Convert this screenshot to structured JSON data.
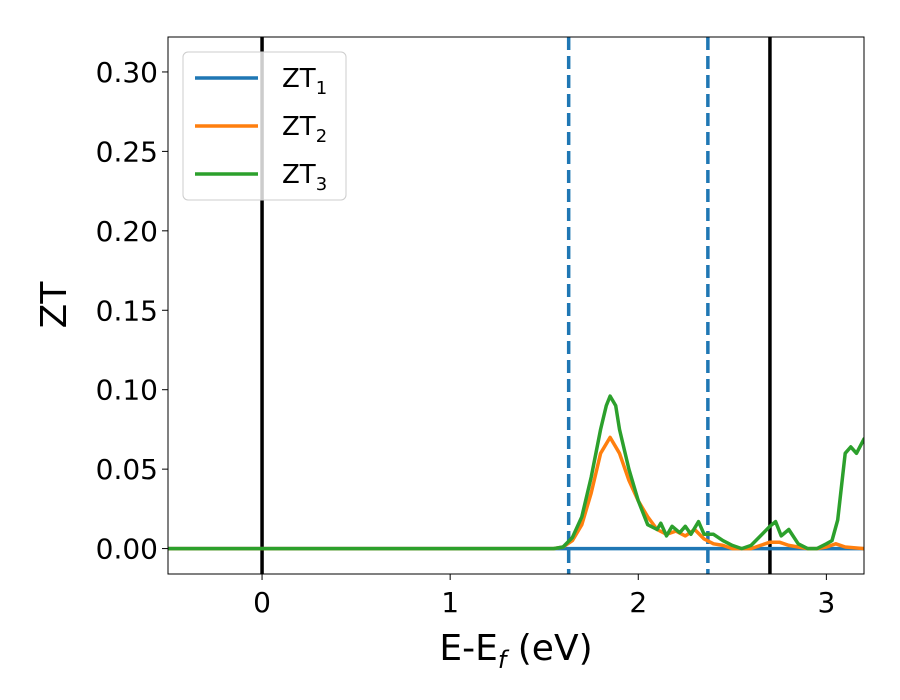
{
  "chart_data": {
    "type": "line",
    "xlabel": {
      "base": "E-E",
      "sub": "f",
      "unit": " (eV)"
    },
    "ylabel": "ZT",
    "xlim": [
      -0.5,
      3.2
    ],
    "ylim": [
      -0.016,
      0.322
    ],
    "x_ticks": [
      0,
      1,
      2,
      3
    ],
    "x_tick_labels": [
      "0",
      "1",
      "2",
      "3"
    ],
    "y_ticks": [
      0.0,
      0.05,
      0.1,
      0.15,
      0.2,
      0.25,
      0.3
    ],
    "y_tick_labels": [
      "0.00",
      "0.05",
      "0.10",
      "0.15",
      "0.20",
      "0.25",
      "0.30"
    ],
    "grid": false,
    "legend_position": "top-left",
    "vertical_lines": [
      {
        "x": 0.0,
        "style": "solid",
        "color": "#000000"
      },
      {
        "x": 1.63,
        "style": "dashed",
        "color": "#1f77b4"
      },
      {
        "x": 2.37,
        "style": "dashed",
        "color": "#1f77b4"
      },
      {
        "x": 2.7,
        "style": "solid",
        "color": "#000000"
      }
    ],
    "series": [
      {
        "legend_base": "ZT",
        "legend_sub": "1",
        "color": "#1f77b4",
        "x": [
          -0.5,
          1.6,
          1.65,
          3.2
        ],
        "y": [
          0.0,
          0.0,
          0.0,
          0.0
        ]
      },
      {
        "legend_base": "ZT",
        "legend_sub": "2",
        "color": "#ff7f0e",
        "x": [
          -0.5,
          1.55,
          1.6,
          1.65,
          1.7,
          1.75,
          1.8,
          1.85,
          1.9,
          1.95,
          2.0,
          2.05,
          2.1,
          2.15,
          2.2,
          2.25,
          2.3,
          2.35,
          2.4,
          2.45,
          2.5,
          2.55,
          2.6,
          2.65,
          2.7,
          2.75,
          2.8,
          2.85,
          2.9,
          2.95,
          3.0,
          3.05,
          3.1,
          3.2
        ],
        "y": [
          0.0,
          0.0,
          0.001,
          0.005,
          0.015,
          0.035,
          0.06,
          0.07,
          0.06,
          0.043,
          0.03,
          0.02,
          0.012,
          0.009,
          0.011,
          0.008,
          0.012,
          0.006,
          0.003,
          0.002,
          0.0,
          0.0,
          0.0,
          0.002,
          0.004,
          0.004,
          0.002,
          0.001,
          0.0,
          0.0,
          0.001,
          0.003,
          0.001,
          0.0
        ]
      },
      {
        "legend_base": "ZT",
        "legend_sub": "3",
        "color": "#2ca02c",
        "x": [
          -0.5,
          1.55,
          1.6,
          1.65,
          1.7,
          1.75,
          1.8,
          1.83,
          1.85,
          1.88,
          1.9,
          1.95,
          2.0,
          2.05,
          2.1,
          2.12,
          2.15,
          2.18,
          2.22,
          2.25,
          2.28,
          2.32,
          2.35,
          2.4,
          2.45,
          2.5,
          2.55,
          2.6,
          2.65,
          2.7,
          2.73,
          2.76,
          2.8,
          2.85,
          2.9,
          2.95,
          3.0,
          3.03,
          3.06,
          3.1,
          3.13,
          3.16,
          3.2
        ],
        "y": [
          0.0,
          0.0,
          0.001,
          0.007,
          0.02,
          0.045,
          0.075,
          0.09,
          0.096,
          0.09,
          0.075,
          0.05,
          0.03,
          0.015,
          0.012,
          0.016,
          0.008,
          0.014,
          0.01,
          0.014,
          0.009,
          0.017,
          0.009,
          0.009,
          0.005,
          0.002,
          0.0,
          0.002,
          0.008,
          0.014,
          0.017,
          0.008,
          0.012,
          0.003,
          0.0,
          0.0,
          0.003,
          0.005,
          0.018,
          0.06,
          0.064,
          0.06,
          0.069
        ]
      }
    ]
  }
}
